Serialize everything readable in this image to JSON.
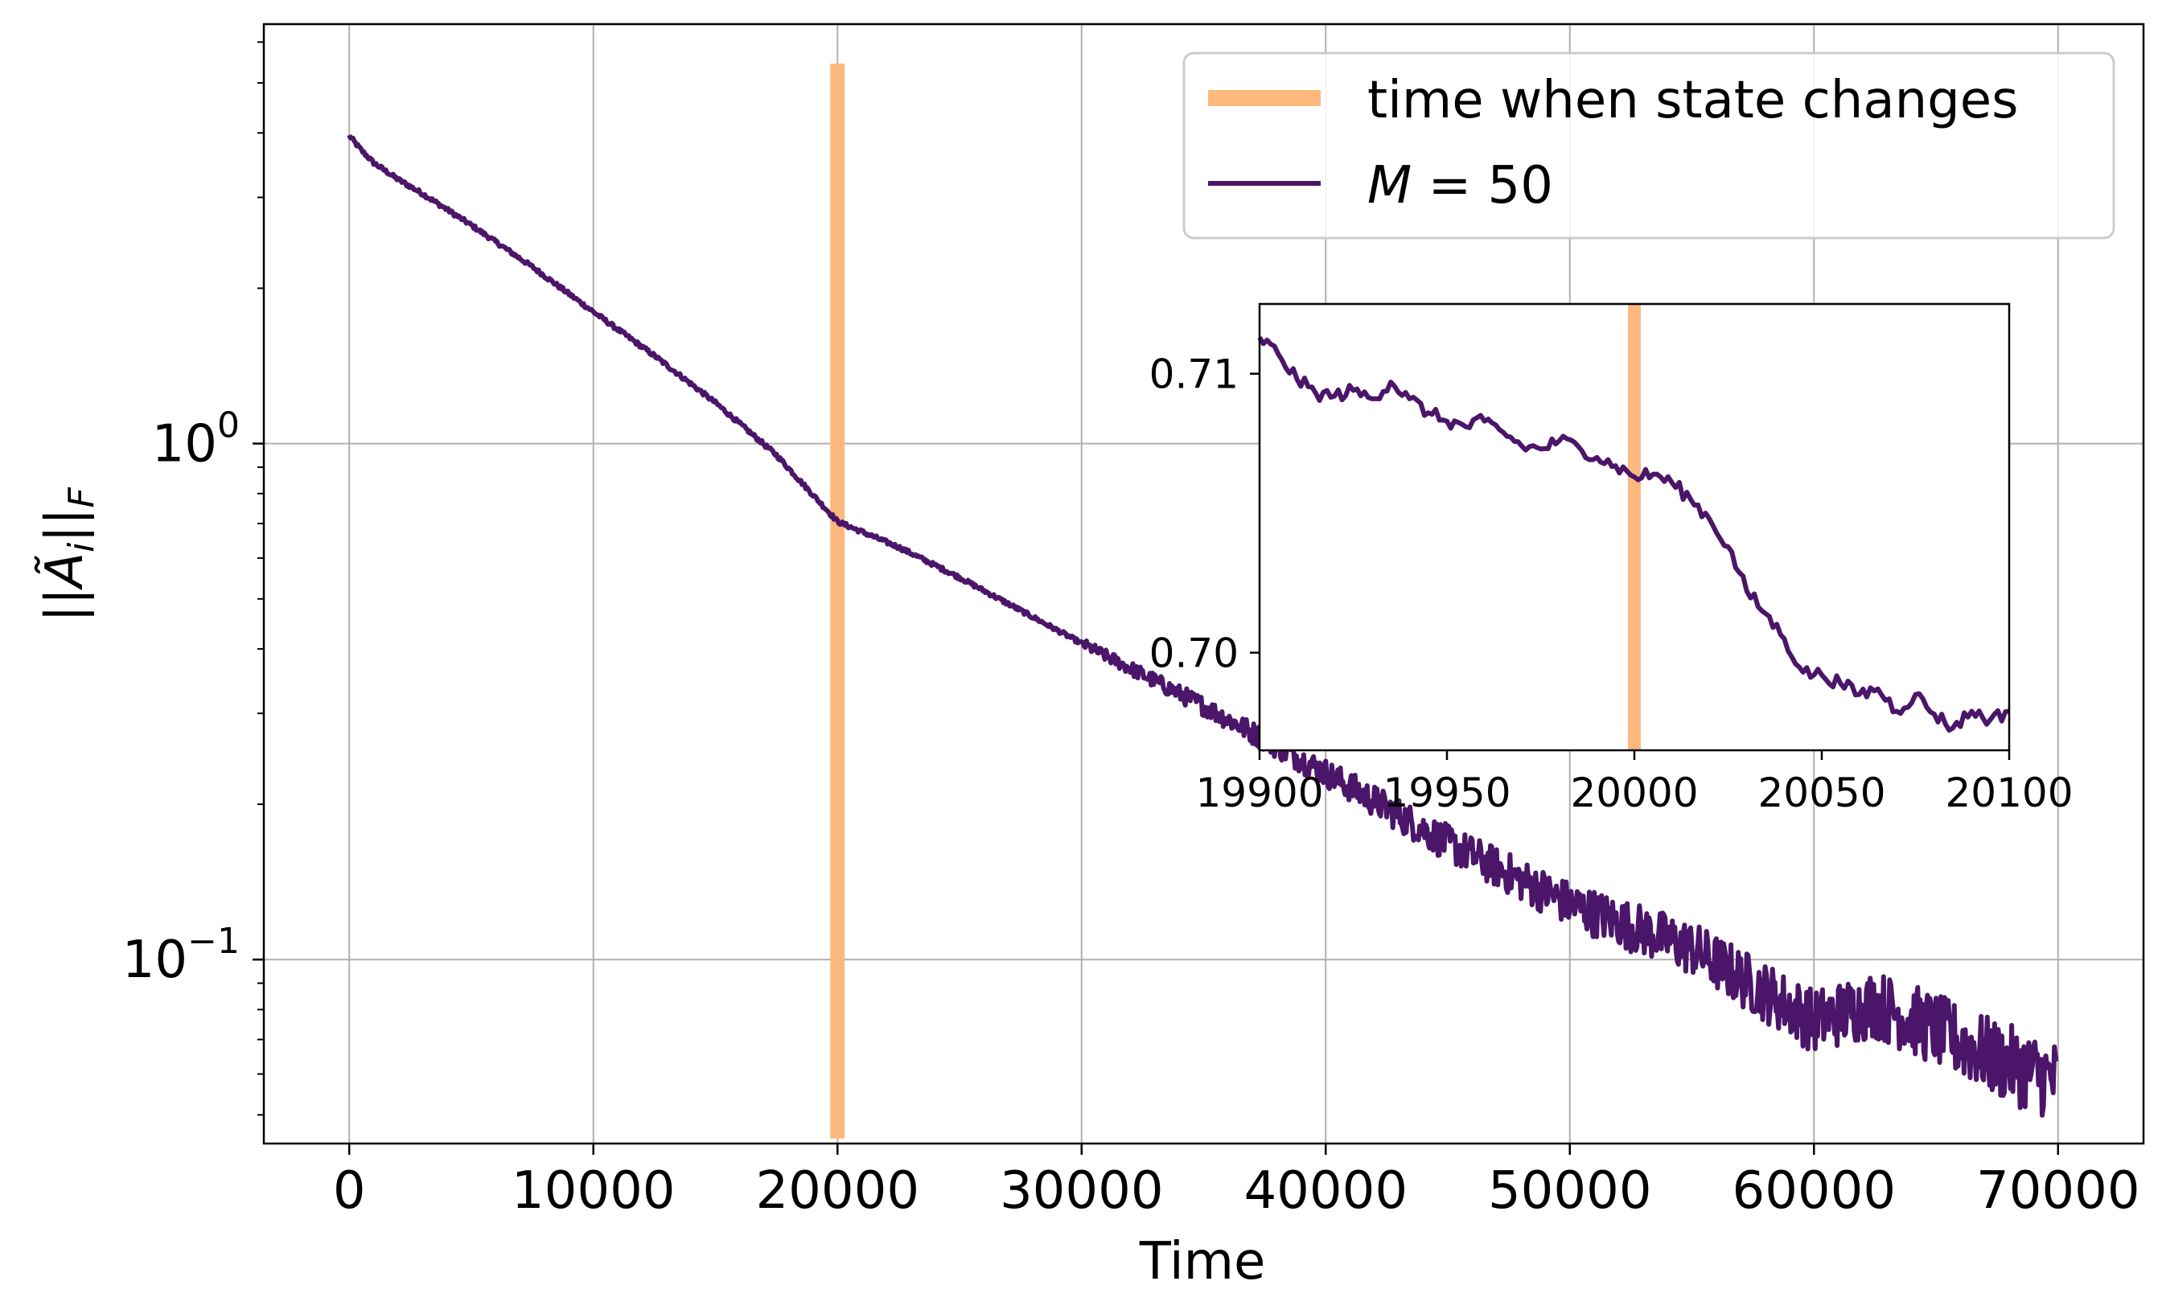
{
  "chart_data": [
    {
      "type": "line",
      "xlabel": "Time",
      "ylabel": "||Ã_i||_F",
      "yscale": "log",
      "xlim": [
        -3500,
        73500
      ],
      "ylim": [
        0.044,
        6.5
      ],
      "grid": true,
      "legend": "top-right",
      "x_ticks": [
        {
          "value": 0,
          "label": "0"
        },
        {
          "value": 10000,
          "label": "10000"
        },
        {
          "value": 20000,
          "label": "20000"
        },
        {
          "value": 30000,
          "label": "30000"
        },
        {
          "value": 40000,
          "label": "40000"
        },
        {
          "value": 50000,
          "label": "50000"
        },
        {
          "value": 60000,
          "label": "60000"
        },
        {
          "value": 70000,
          "label": "70000"
        }
      ],
      "y_ticks": [
        {
          "value": 1.0,
          "base": "10",
          "exp": "0"
        },
        {
          "value": 0.1,
          "base": "10",
          "exp": "−1"
        }
      ],
      "series": [
        {
          "name": "time when state changes",
          "kind": "vertical-line",
          "color": "#fdb97d",
          "x": 20000,
          "y_range": [
            0.045,
            5.45
          ]
        },
        {
          "name": "M = 50",
          "kind": "line",
          "color": "#4b1669",
          "x": [
            0,
            500,
            1000,
            2000,
            3000,
            5000,
            7500,
            10000,
            12500,
            15000,
            17500,
            20000,
            22500,
            25000,
            30000,
            35000,
            40000,
            45000,
            50000,
            55000,
            60000,
            62500,
            65000,
            67500,
            70000
          ],
          "y": [
            3.95,
            3.7,
            3.5,
            3.25,
            3.05,
            2.65,
            2.2,
            1.8,
            1.48,
            1.2,
            0.95,
            0.706,
            0.63,
            0.55,
            0.41,
            0.31,
            0.23,
            0.168,
            0.128,
            0.105,
            0.076,
            0.082,
            0.073,
            0.064,
            0.058
          ],
          "noise": "increasing oscillation after x ≈ 40000"
        }
      ]
    },
    {
      "type": "line",
      "role": "inset",
      "xlim": [
        19900,
        20100
      ],
      "ylim": [
        0.6965,
        0.7125
      ],
      "x_ticks": [
        {
          "value": 19900,
          "label": "19900"
        },
        {
          "value": 19950,
          "label": "19950"
        },
        {
          "value": 20000,
          "label": "20000"
        },
        {
          "value": 20050,
          "label": "20050"
        },
        {
          "value": 20100,
          "label": "20100"
        }
      ],
      "y_ticks": [
        {
          "value": 0.7,
          "label": "0.70"
        },
        {
          "value": 0.71,
          "label": "0.71"
        }
      ],
      "series": [
        {
          "kind": "vertical-line",
          "color": "#fdb97d",
          "x": 20000
        },
        {
          "kind": "line",
          "color": "#4b1669",
          "x": [
            19900,
            19905,
            19910,
            19915,
            19920,
            19925,
            19930,
            19935,
            19940,
            19945,
            19950,
            19955,
            19960,
            19965,
            19970,
            19975,
            19980,
            19985,
            19990,
            19995,
            20000,
            20005,
            20010,
            20015,
            20020,
            20025,
            20030,
            20035,
            20040,
            20045,
            20050,
            20055,
            20060,
            20065,
            20070,
            20075,
            20080,
            20085,
            20090,
            20095,
            20100
          ],
          "y": [
            0.7113,
            0.7107,
            0.7098,
            0.7093,
            0.7092,
            0.7094,
            0.7091,
            0.7097,
            0.7091,
            0.7086,
            0.7083,
            0.7081,
            0.7083,
            0.7079,
            0.7074,
            0.7073,
            0.7076,
            0.7074,
            0.707,
            0.7067,
            0.7063,
            0.7064,
            0.7061,
            0.7055,
            0.7048,
            0.7038,
            0.7022,
            0.7014,
            0.7005,
            0.6993,
            0.6992,
            0.6989,
            0.6985,
            0.6987,
            0.6979,
            0.6985,
            0.6978,
            0.6973,
            0.6979,
            0.6976,
            0.6979
          ]
        }
      ]
    }
  ]
}
